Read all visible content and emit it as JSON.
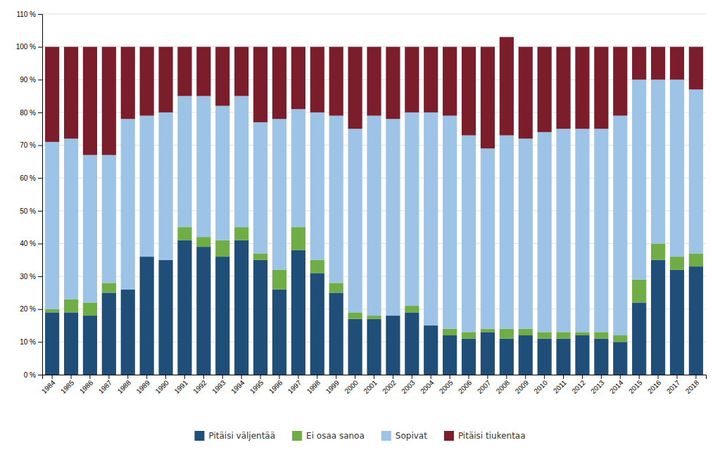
{
  "chart_data": {
    "type": "bar",
    "stacked": true,
    "grid": true,
    "legend": "bottom",
    "categories": [
      "1984",
      "1985",
      "1986",
      "1987",
      "1988",
      "1989",
      "1990",
      "1991",
      "1992",
      "1993",
      "1994",
      "1995",
      "1996",
      "1997",
      "1998",
      "1999",
      "2000",
      "2001",
      "2002",
      "2003",
      "2004",
      "2005",
      "2006",
      "2007",
      "2008",
      "2009",
      "2010",
      "2011",
      "2012",
      "2013",
      "2014",
      "2015",
      "2016",
      "2017",
      "2018"
    ],
    "series": [
      {
        "name": "Pitäisi väljentää",
        "color": "#1F4E79",
        "values": [
          19,
          19,
          18,
          25,
          26,
          36,
          35,
          41,
          39,
          36,
          41,
          35,
          26,
          38,
          31,
          25,
          17,
          17,
          18,
          19,
          15,
          12,
          11,
          13,
          11,
          12,
          11,
          11,
          12,
          11,
          10,
          22,
          35,
          32,
          33
        ]
      },
      {
        "name": "Ei osaa sanoa",
        "color": "#70AD47",
        "values": [
          1,
          4,
          4,
          3,
          0,
          0,
          0,
          4,
          3,
          5,
          4,
          2,
          6,
          7,
          4,
          3,
          2,
          1,
          0,
          2,
          0,
          2,
          2,
          1,
          3,
          2,
          2,
          2,
          1,
          2,
          2,
          7,
          5,
          4,
          4
        ]
      },
      {
        "name": "Sopivat",
        "color": "#9DC3E6",
        "values": [
          51,
          49,
          45,
          39,
          52,
          43,
          45,
          40,
          43,
          41,
          40,
          40,
          46,
          36,
          45,
          51,
          56,
          61,
          60,
          59,
          65,
          65,
          60,
          55,
          59,
          58,
          61,
          62,
          62,
          62,
          67,
          61,
          50,
          54,
          50
        ]
      },
      {
        "name": "Pitäisi tiukentaa",
        "color": "#7B1D2A",
        "values": [
          29,
          28,
          33,
          33,
          22,
          21,
          20,
          15,
          15,
          18,
          15,
          23,
          22,
          19,
          20,
          21,
          25,
          21,
          22,
          20,
          20,
          21,
          27,
          31,
          30,
          28,
          26,
          25,
          25,
          25,
          21,
          10,
          10,
          10,
          13
        ]
      }
    ],
    "ylim": [
      0,
      110
    ],
    "yticks": [
      {
        "value": 0,
        "label": "0 %"
      },
      {
        "value": 10,
        "label": "10 %"
      },
      {
        "value": 20,
        "label": "20 %"
      },
      {
        "value": 30,
        "label": "30 %"
      },
      {
        "value": 40,
        "label": "40 %"
      },
      {
        "value": 50,
        "label": "50 %"
      },
      {
        "value": 60,
        "label": "60 %"
      },
      {
        "value": 70,
        "label": "70 %"
      },
      {
        "value": 80,
        "label": "80 %"
      },
      {
        "value": 90,
        "label": "90 %"
      },
      {
        "value": 100,
        "label": "100 %"
      },
      {
        "value": 110,
        "label": "110 %"
      }
    ]
  }
}
